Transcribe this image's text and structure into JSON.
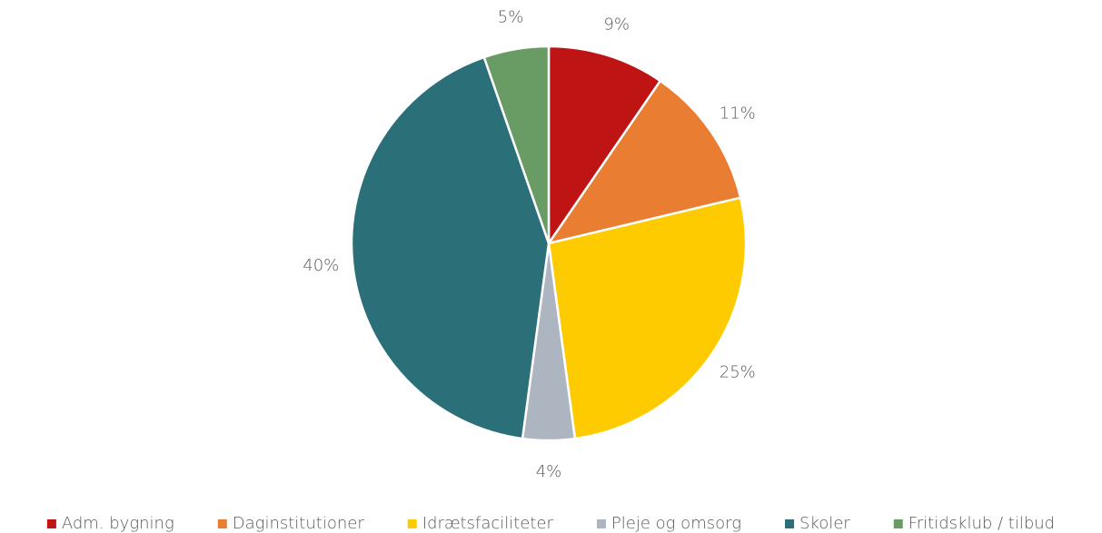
{
  "chart_data": {
    "type": "pie",
    "categories": [
      "Adm. bygning",
      "Daginstitutioner",
      "Idrætsfaciliteter",
      "Pleje og omsorg",
      "Skoler",
      "Fritidsklub / tilbud"
    ],
    "values": [
      9,
      11,
      25,
      4,
      40,
      5
    ],
    "value_labels": [
      "9%",
      "11%",
      "25%",
      "4%",
      "40%",
      "5%"
    ],
    "colors": [
      "#be1414",
      "#e97e33",
      "#fdcb00",
      "#adb5c0",
      "#2b7078",
      "#699c65"
    ],
    "legend": "bottom"
  }
}
